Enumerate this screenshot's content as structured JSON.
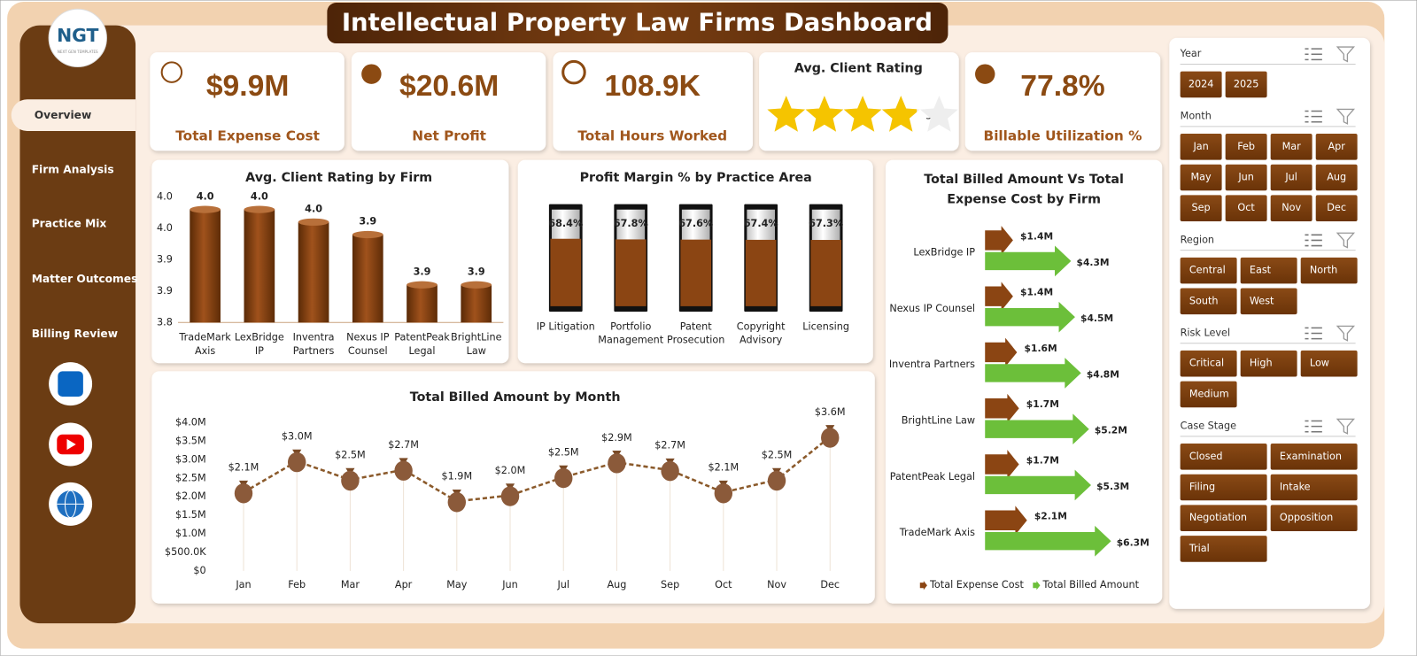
{
  "header": {
    "title": "Intellectual Property Law Firms Dashboard"
  },
  "logo": {
    "text": "NGT",
    "tagline": "NEXT GEN TEMPLATES"
  },
  "navigation": [
    "Overview",
    "Firm Analysis",
    "Practice Mix",
    "Matter Outcomes",
    "Billing Review"
  ],
  "kpis": [
    {
      "value": "$9.9M",
      "label": "Total Expense Cost"
    },
    {
      "value": "$20.6M",
      "label": "Net Profit"
    },
    {
      "value": "108.9K",
      "label": "Total Hours Worked"
    },
    {
      "label": "Avg. Client Rating",
      "rating": 3.9
    },
    {
      "value": "77.8%",
      "label": "Billable Utilization %"
    }
  ],
  "slicers": [
    {
      "title": "Year",
      "items": [
        "2024",
        "2025"
      ]
    },
    {
      "title": "Month",
      "items": [
        "Jan",
        "Feb",
        "Mar",
        "Apr",
        "May",
        "Jun",
        "Jul",
        "Aug",
        "Sep",
        "Oct",
        "Nov",
        "Dec"
      ]
    },
    {
      "title": "Region",
      "items": [
        "Central",
        "East",
        "North",
        "South",
        "West"
      ]
    },
    {
      "title": "Risk Level",
      "items": [
        "Critical",
        "High",
        "Low",
        "Medium"
      ]
    },
    {
      "title": "Case Stage",
      "items": [
        "Closed",
        "Examination",
        "Filing",
        "Intake",
        "Negotiation",
        "Opposition",
        "Trial"
      ]
    }
  ],
  "chart_data": [
    {
      "type": "bar",
      "title": "Avg. Client Rating by Firm",
      "categories": [
        "TradeMark Axis",
        "LexBridge IP",
        "Inventra Partners",
        "Nexus IP Counsel",
        "PatentPeak Legal",
        "BrightLine Law"
      ],
      "values": [
        3.98,
        3.98,
        3.96,
        3.94,
        3.86,
        3.86
      ],
      "value_labels": [
        "4.0",
        "4.0",
        "4.0",
        "3.9",
        "3.9",
        "3.9"
      ],
      "color": "#8b4513",
      "ylim": [
        3.8,
        4.0
      ],
      "yticks": [
        3.8,
        {
          "value": 3.85,
          "label": "3.9"
        },
        3.9,
        {
          "value": 3.95,
          "label": "4.0"
        },
        {
          "value": 4.0,
          "label": "4.0"
        }
      ]
    },
    {
      "type": "cylinder",
      "title": "Profit Margin % by Practice Area",
      "categories": [
        "IP Litigation",
        "Portfolio Management",
        "Patent Prosecution",
        "Copyright Advisory",
        "Licensing"
      ],
      "values": [
        68.4,
        67.8,
        67.6,
        67.4,
        67.3
      ],
      "value_labels": [
        "68.4%",
        "67.8%",
        "67.6%",
        "67.4%",
        "67.3%"
      ],
      "color": "#8b4513",
      "ylim": [
        0,
        100
      ]
    },
    {
      "type": "arrow-bar",
      "title": "Total Billed Amount Vs Total Expense Cost by Firm",
      "categories": [
        "LexBridge IP",
        "Nexus IP Counsel",
        "Inventra Partners",
        "BrightLine Law",
        "PatentPeak Legal",
        "TradeMark Axis"
      ],
      "series": [
        {
          "name": "Total Expense Cost",
          "color": "#8b4513",
          "values": [
            1.4,
            1.4,
            1.6,
            1.7,
            1.7,
            2.1
          ],
          "value_labels": [
            "$1.4M",
            "$1.4M",
            "$1.6M",
            "$1.7M",
            "$1.7M",
            "$2.1M"
          ]
        },
        {
          "name": "Total Billed Amount",
          "color": "#6cbf3a",
          "values": [
            4.3,
            4.5,
            4.8,
            5.2,
            5.3,
            6.3
          ],
          "value_labels": [
            "$4.3M",
            "$4.5M",
            "$4.8M",
            "$5.2M",
            "$5.3M",
            "$6.3M"
          ]
        }
      ],
      "xlim": [
        0,
        7
      ],
      "legend": "bottom"
    },
    {
      "type": "line",
      "title": "Total Billed Amount by Month",
      "categories": [
        "Jan",
        "Feb",
        "Mar",
        "Apr",
        "May",
        "Jun",
        "Jul",
        "Aug",
        "Sep",
        "Oct",
        "Nov",
        "Dec"
      ],
      "values": [
        2120000,
        2960000,
        2460000,
        2730000,
        1880000,
        2040000,
        2530000,
        2930000,
        2720000,
        2120000,
        2460000,
        3620000
      ],
      "value_labels": [
        "$2.1M",
        "$3.0M",
        "$2.5M",
        "$2.7M",
        "$1.9M",
        "$2.0M",
        "$2.5M",
        "$2.9M",
        "$2.7M",
        "$2.1M",
        "$2.5M",
        "$3.6M"
      ],
      "color": "#8b5a2b",
      "ylim": [
        0,
        4000000
      ],
      "yticks": [
        {
          "value": 0,
          "label": "$0"
        },
        {
          "value": 500000,
          "label": "$500.0K"
        },
        {
          "value": 1000000,
          "label": "$1.0M"
        },
        {
          "value": 1500000,
          "label": "$1.5M"
        },
        {
          "value": 2000000,
          "label": "$2.0M"
        },
        {
          "value": 2500000,
          "label": "$2.5M"
        },
        {
          "value": 3000000,
          "label": "$3.0M"
        },
        {
          "value": 3500000,
          "label": "$3.5M"
        },
        {
          "value": 4000000,
          "label": "$4.0M"
        }
      ]
    }
  ]
}
